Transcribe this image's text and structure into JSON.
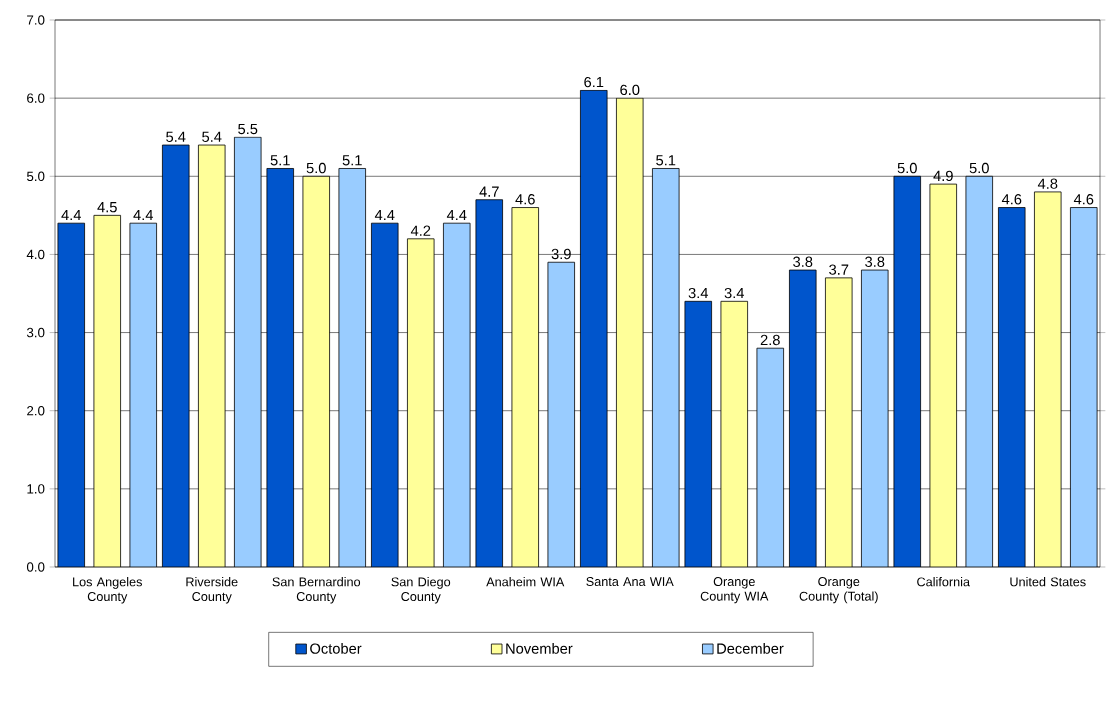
{
  "chart_data": {
    "type": "bar",
    "categories": [
      "Los Angeles County",
      "Riverside County",
      "San Bernardino County",
      "San Diego County",
      "Anaheim WIA",
      "Santa Ana WIA",
      "Orange County WIA",
      "Orange County (Total)",
      "California",
      "United States"
    ],
    "series": [
      {
        "name": "October",
        "color": "#0055cc",
        "values": [
          4.4,
          5.4,
          5.1,
          4.4,
          4.7,
          6.1,
          3.4,
          3.8,
          5.0,
          4.6
        ],
        "value_labels": [
          "4.4",
          "5.4",
          "5.1",
          "4.4",
          "4.7",
          "6.1",
          "3.4",
          "3.8",
          "5.0",
          "4.6"
        ]
      },
      {
        "name": "November",
        "color": "#ffff99",
        "values": [
          4.5,
          5.4,
          5.0,
          4.2,
          4.6,
          6.0,
          3.4,
          3.7,
          4.9,
          4.8
        ],
        "value_labels": [
          "4.5",
          "5.4",
          "5.0",
          "4.2",
          "4.6",
          "6.0",
          "3.4",
          "3.7",
          "4.9",
          "4.8"
        ]
      },
      {
        "name": "December",
        "color": "#99ccff",
        "values": [
          4.4,
          5.5,
          5.1,
          4.4,
          3.9,
          5.1,
          2.8,
          3.8,
          5.0,
          4.6
        ],
        "value_labels": [
          "4.4",
          "5.5",
          "5.1",
          "4.4",
          "3.9",
          "5.1",
          "2.8",
          "3.8",
          "5.0",
          "4.6"
        ]
      }
    ],
    "ylim": [
      0,
      7
    ],
    "yticks": [
      {
        "value": 0,
        "label": "0.0"
      },
      {
        "value": 1,
        "label": "1.0"
      },
      {
        "value": 2,
        "label": "2.0"
      },
      {
        "value": 3,
        "label": "3.0"
      },
      {
        "value": 4,
        "label": "4.0"
      },
      {
        "value": 5,
        "label": "5.0"
      },
      {
        "value": 6,
        "label": "6.0"
      },
      {
        "value": 7,
        "label": "7.0"
      }
    ],
    "grid": "y",
    "legend": "bottom"
  }
}
